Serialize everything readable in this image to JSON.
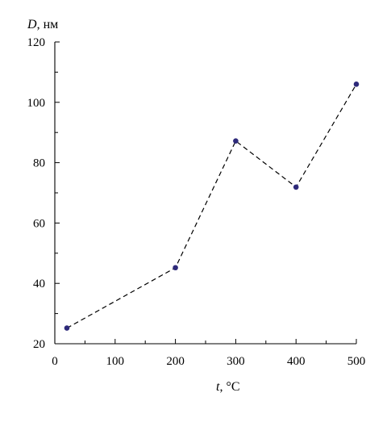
{
  "chart_data": {
    "type": "line",
    "xlabel": {
      "symbol": "t",
      "unit": ", °C"
    },
    "ylabel": {
      "symbol": "D",
      "unit": ", нм"
    },
    "xlim": [
      0,
      500
    ],
    "ylim": [
      20,
      120
    ],
    "xticks": [
      0,
      100,
      200,
      300,
      400,
      500
    ],
    "yticks": [
      20,
      40,
      60,
      80,
      100,
      120
    ],
    "xminor_step": 50,
    "yminor_step": 10,
    "grid": false,
    "series": [
      {
        "x": [
          20,
          200,
          300,
          400,
          500
        ],
        "values": [
          25.2,
          45.2,
          87.2,
          71.9,
          106
        ]
      }
    ],
    "colors": {
      "line": "#000000",
      "marker": "#2e2a7a"
    }
  }
}
